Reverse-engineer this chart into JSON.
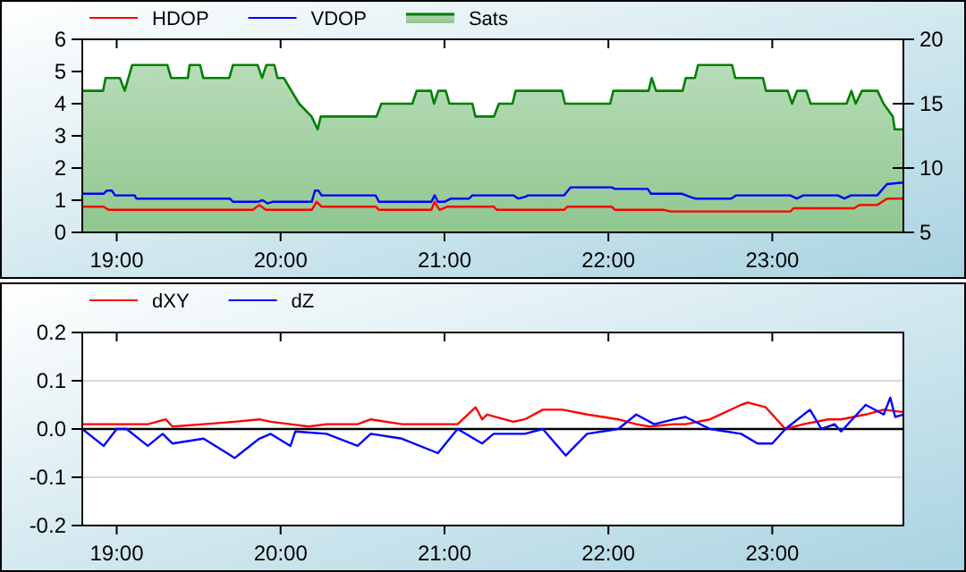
{
  "chart_data": [
    {
      "type": "line",
      "legend": "top left",
      "xlim": [
        18.79,
        23.8
      ],
      "xticks": [
        {
          "value": 19,
          "label": "19:00"
        },
        {
          "value": 20,
          "label": "20:00"
        },
        {
          "value": 21,
          "label": "21:00"
        },
        {
          "value": 22,
          "label": "22:00"
        },
        {
          "value": 23,
          "label": "23:00"
        }
      ],
      "ylim": [
        0,
        6
      ],
      "yticks": [
        0,
        1,
        2,
        3,
        4,
        5,
        6
      ],
      "y2lim": [
        5,
        20
      ],
      "y2ticks": [
        5,
        10,
        15,
        20
      ],
      "series": [
        {
          "name": "HDOP",
          "color": "#ff0000",
          "x": [
            18.79,
            18.92,
            18.95,
            19.83,
            19.87,
            19.91,
            20.19,
            20.22,
            20.25,
            20.58,
            20.6,
            20.92,
            20.94,
            20.97,
            21.02,
            21.3,
            21.32,
            21.73,
            21.75,
            22.02,
            22.04,
            22.34,
            22.38,
            23.11,
            23.13,
            23.5,
            23.53,
            23.64,
            23.7,
            23.8
          ],
          "values": [
            0.8,
            0.8,
            0.7,
            0.7,
            0.85,
            0.7,
            0.7,
            0.95,
            0.8,
            0.8,
            0.7,
            0.7,
            0.95,
            0.7,
            0.8,
            0.8,
            0.7,
            0.7,
            0.8,
            0.8,
            0.7,
            0.7,
            0.65,
            0.65,
            0.75,
            0.75,
            0.85,
            0.85,
            1.05,
            1.05
          ]
        },
        {
          "name": "VDOP",
          "color": "#0000ff",
          "x": [
            18.79,
            18.92,
            18.94,
            18.97,
            18.99,
            19.11,
            19.12,
            19.69,
            19.71,
            19.86,
            19.89,
            19.92,
            19.95,
            20.19,
            20.21,
            20.23,
            20.25,
            20.58,
            20.6,
            20.92,
            20.94,
            20.96,
            21.0,
            21.04,
            21.15,
            21.17,
            21.42,
            21.45,
            21.49,
            21.51,
            21.73,
            21.77,
            22.02,
            22.04,
            22.24,
            22.26,
            22.45,
            22.5,
            22.53,
            22.75,
            22.78,
            23.11,
            23.15,
            23.19,
            23.4,
            23.44,
            23.48,
            23.64,
            23.7,
            23.8
          ],
          "values": [
            1.2,
            1.2,
            1.3,
            1.3,
            1.15,
            1.15,
            1.05,
            1.05,
            0.95,
            0.95,
            1.0,
            0.9,
            0.95,
            0.95,
            1.3,
            1.3,
            1.15,
            1.15,
            0.95,
            0.95,
            1.15,
            0.95,
            0.95,
            1.05,
            1.05,
            1.15,
            1.15,
            1.05,
            1.1,
            1.15,
            1.15,
            1.4,
            1.4,
            1.35,
            1.35,
            1.2,
            1.2,
            1.1,
            1.05,
            1.05,
            1.15,
            1.15,
            1.05,
            1.15,
            1.15,
            1.05,
            1.15,
            1.15,
            1.5,
            1.55
          ]
        },
        {
          "name": "Sats",
          "type": "area",
          "axis": "y2",
          "color": "#008000",
          "x": [
            18.79,
            18.917,
            18.932,
            19.019,
            19.049,
            19.094,
            19.309,
            19.332,
            19.434,
            19.445,
            19.509,
            19.528,
            19.687,
            19.709,
            19.86,
            19.887,
            19.913,
            19.962,
            19.981,
            20.019,
            20.113,
            20.189,
            20.226,
            20.245,
            20.585,
            20.615,
            20.804,
            20.83,
            20.917,
            20.936,
            20.962,
            21.008,
            21.03,
            21.17,
            21.189,
            21.302,
            21.332,
            21.415,
            21.434,
            21.717,
            21.736,
            22.011,
            22.03,
            22.245,
            22.264,
            22.291,
            22.453,
            22.472,
            22.528,
            22.547,
            22.755,
            22.774,
            22.943,
            22.962,
            23.094,
            23.121,
            23.151,
            23.208,
            23.234,
            23.453,
            23.483,
            23.509,
            23.547,
            23.642,
            23.679,
            23.736,
            23.747,
            23.8
          ],
          "values": [
            16,
            16,
            17,
            17,
            16,
            18,
            18,
            17,
            17,
            18,
            18,
            17,
            17,
            18,
            18,
            17,
            18,
            18,
            17,
            17,
            15,
            14,
            13,
            14,
            14,
            15,
            15,
            16,
            16,
            15,
            16,
            16,
            15,
            15,
            14,
            14,
            15,
            15,
            16,
            16,
            15,
            15,
            16,
            16,
            17,
            16,
            16,
            17,
            17,
            18,
            18,
            17,
            17,
            16,
            16,
            15,
            16,
            16,
            15,
            15,
            16,
            15,
            16,
            16,
            15,
            14,
            13,
            13
          ]
        }
      ]
    },
    {
      "type": "line",
      "legend": "top left",
      "grid": "y",
      "xlim": [
        18.79,
        23.8
      ],
      "xticks": [
        {
          "value": 19,
          "label": "19:00"
        },
        {
          "value": 20,
          "label": "20:00"
        },
        {
          "value": 21,
          "label": "21:00"
        },
        {
          "value": 22,
          "label": "22:00"
        },
        {
          "value": 23,
          "label": "23:00"
        }
      ],
      "ylim": [
        -0.2,
        0.2
      ],
      "yticks": [
        {
          "value": -0.2,
          "label": "-0.2"
        },
        {
          "value": -0.1,
          "label": "-0.1"
        },
        {
          "value": 0,
          "label": "0.0"
        },
        {
          "value": 0.1,
          "label": "0.1"
        },
        {
          "value": 0.2,
          "label": "0.2"
        }
      ],
      "ref_lines": [
        {
          "axis": "y",
          "value": 0,
          "color": "#000000"
        }
      ],
      "series": [
        {
          "name": "dXY",
          "color": "#ff0000",
          "x": [
            18.79,
            18.92,
            19.0,
            19.19,
            19.3,
            19.34,
            19.53,
            19.72,
            19.87,
            19.94,
            20.06,
            20.17,
            20.28,
            20.47,
            20.55,
            20.74,
            20.92,
            21.08,
            21.19,
            21.23,
            21.26,
            21.42,
            21.49,
            21.6,
            21.72,
            21.87,
            22.06,
            22.17,
            22.25,
            22.4,
            22.47,
            22.62,
            22.81,
            22.85,
            22.96,
            23.08,
            23.19,
            23.34,
            23.42,
            23.57,
            23.68,
            23.8
          ],
          "values": [
            0.01,
            0.01,
            0.01,
            0.01,
            0.02,
            0.005,
            0.01,
            0.015,
            0.02,
            0.015,
            0.01,
            0.005,
            0.01,
            0.01,
            0.02,
            0.01,
            0.01,
            0.01,
            0.045,
            0.02,
            0.03,
            0.015,
            0.02,
            0.04,
            0.04,
            0.03,
            0.02,
            0.01,
            0.005,
            0.01,
            0.01,
            0.02,
            0.05,
            0.055,
            0.045,
            0.0,
            0.01,
            0.02,
            0.02,
            0.03,
            0.04,
            0.035
          ]
        },
        {
          "name": "dZ",
          "color": "#0000ff",
          "x": [
            18.79,
            18.92,
            19.0,
            19.06,
            19.19,
            19.28,
            19.34,
            19.53,
            19.72,
            19.87,
            19.94,
            20.06,
            20.09,
            20.28,
            20.47,
            20.55,
            20.74,
            20.96,
            21.08,
            21.23,
            21.3,
            21.49,
            21.6,
            21.74,
            21.87,
            22.06,
            22.17,
            22.28,
            22.4,
            22.47,
            22.62,
            22.81,
            22.91,
            23.0,
            23.08,
            23.23,
            23.3,
            23.38,
            23.42,
            23.57,
            23.68,
            23.72,
            23.75,
            23.8
          ],
          "values": [
            0,
            -0.035,
            0,
            0,
            -0.035,
            -0.01,
            -0.03,
            -0.02,
            -0.06,
            -0.02,
            -0.01,
            -0.035,
            -0.005,
            -0.01,
            -0.035,
            -0.01,
            -0.02,
            -0.05,
            0,
            -0.03,
            -0.01,
            -0.01,
            0,
            -0.055,
            -0.01,
            0,
            0.03,
            0.01,
            0.02,
            0.025,
            0,
            -0.01,
            -0.03,
            -0.03,
            0,
            0.04,
            0,
            0.01,
            -0.005,
            0.05,
            0.03,
            0.065,
            0.025,
            0.03
          ]
        }
      ]
    }
  ]
}
